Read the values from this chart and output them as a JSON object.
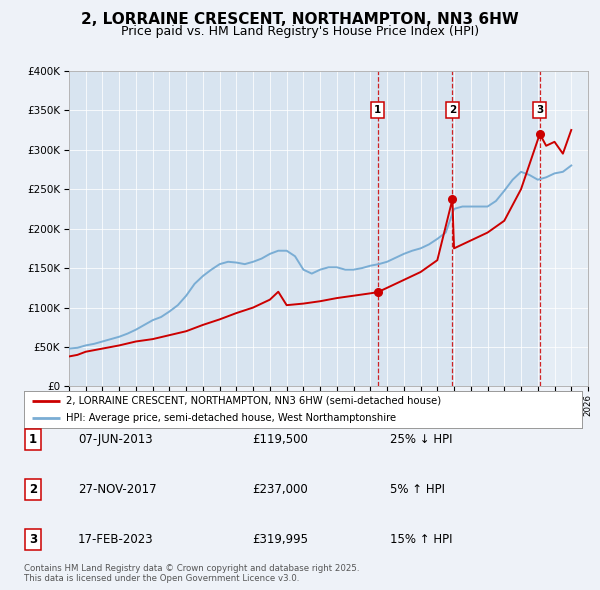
{
  "title": "2, LORRAINE CRESCENT, NORTHAMPTON, NN3 6HW",
  "subtitle": "Price paid vs. HM Land Registry's House Price Index (HPI)",
  "title_fontsize": 11,
  "subtitle_fontsize": 9,
  "background_color": "#eef2f8",
  "plot_bg_color": "#d8e4f0",
  "legend1": "2, LORRAINE CRESCENT, NORTHAMPTON, NN3 6HW (semi-detached house)",
  "legend2": "HPI: Average price, semi-detached house, West Northamptonshire",
  "red_color": "#cc0000",
  "blue_color": "#7aadd4",
  "xmin": 1995,
  "xmax": 2026,
  "ymin": 0,
  "ymax": 400000,
  "ytick_labels": [
    "£0",
    "£50K",
    "£100K",
    "£150K",
    "£200K",
    "£250K",
    "£300K",
    "£350K",
    "£400K"
  ],
  "ytick_values": [
    0,
    50000,
    100000,
    150000,
    200000,
    250000,
    300000,
    350000,
    400000
  ],
  "transactions": [
    {
      "num": 1,
      "date": "07-JUN-2013",
      "year": 2013.44,
      "price": 119500,
      "pct": "25%",
      "dir": "↓"
    },
    {
      "num": 2,
      "date": "27-NOV-2017",
      "year": 2017.9,
      "price": 237000,
      "pct": "5%",
      "dir": "↑"
    },
    {
      "num": 3,
      "date": "17-FEB-2023",
      "year": 2023.12,
      "price": 319995,
      "pct": "15%",
      "dir": "↑"
    }
  ],
  "footer": "Contains HM Land Registry data © Crown copyright and database right 2025.\nThis data is licensed under the Open Government Licence v3.0.",
  "hpi_x": [
    1995.0,
    1995.5,
    1996.0,
    1996.5,
    1997.0,
    1997.5,
    1998.0,
    1998.5,
    1999.0,
    1999.5,
    2000.0,
    2000.5,
    2001.0,
    2001.5,
    2002.0,
    2002.5,
    2003.0,
    2003.5,
    2004.0,
    2004.5,
    2005.0,
    2005.5,
    2006.0,
    2006.5,
    2007.0,
    2007.5,
    2008.0,
    2008.5,
    2009.0,
    2009.5,
    2010.0,
    2010.5,
    2011.0,
    2011.5,
    2012.0,
    2012.5,
    2013.0,
    2013.5,
    2014.0,
    2014.5,
    2015.0,
    2015.5,
    2016.0,
    2016.5,
    2017.0,
    2017.5,
    2018.0,
    2018.5,
    2019.0,
    2019.5,
    2020.0,
    2020.5,
    2021.0,
    2021.5,
    2022.0,
    2022.5,
    2023.0,
    2023.5,
    2024.0,
    2024.5,
    2025.0
  ],
  "hpi_y": [
    48000,
    49000,
    52000,
    54000,
    57000,
    60000,
    63000,
    67000,
    72000,
    78000,
    84000,
    88000,
    95000,
    103000,
    115000,
    130000,
    140000,
    148000,
    155000,
    158000,
    157000,
    155000,
    158000,
    162000,
    168000,
    172000,
    172000,
    165000,
    148000,
    143000,
    148000,
    151000,
    151000,
    148000,
    148000,
    150000,
    153000,
    155000,
    158000,
    163000,
    168000,
    172000,
    175000,
    180000,
    187000,
    195000,
    225000,
    228000,
    228000,
    228000,
    228000,
    235000,
    248000,
    262000,
    272000,
    268000,
    262000,
    265000,
    270000,
    272000,
    280000
  ],
  "price_x": [
    1995.0,
    1995.5,
    1996.0,
    1997.0,
    1998.0,
    1999.0,
    2000.0,
    2001.0,
    2002.0,
    2003.0,
    2004.0,
    2005.0,
    2006.0,
    2007.0,
    2007.5,
    2008.0,
    2009.0,
    2010.0,
    2011.0,
    2012.0,
    2013.0,
    2013.44,
    2014.0,
    2015.0,
    2016.0,
    2017.0,
    2017.9,
    2018.0,
    2019.0,
    2020.0,
    2021.0,
    2022.0,
    2023.12,
    2023.5,
    2024.0,
    2024.5,
    2025.0
  ],
  "price_y": [
    38000,
    40000,
    44000,
    48000,
    52000,
    57000,
    60000,
    65000,
    70000,
    78000,
    85000,
    93000,
    100000,
    110000,
    120000,
    103000,
    105000,
    108000,
    112000,
    115000,
    118000,
    119500,
    125000,
    135000,
    145000,
    160000,
    237000,
    175000,
    185000,
    195000,
    210000,
    250000,
    319995,
    305000,
    310000,
    295000,
    325000
  ]
}
